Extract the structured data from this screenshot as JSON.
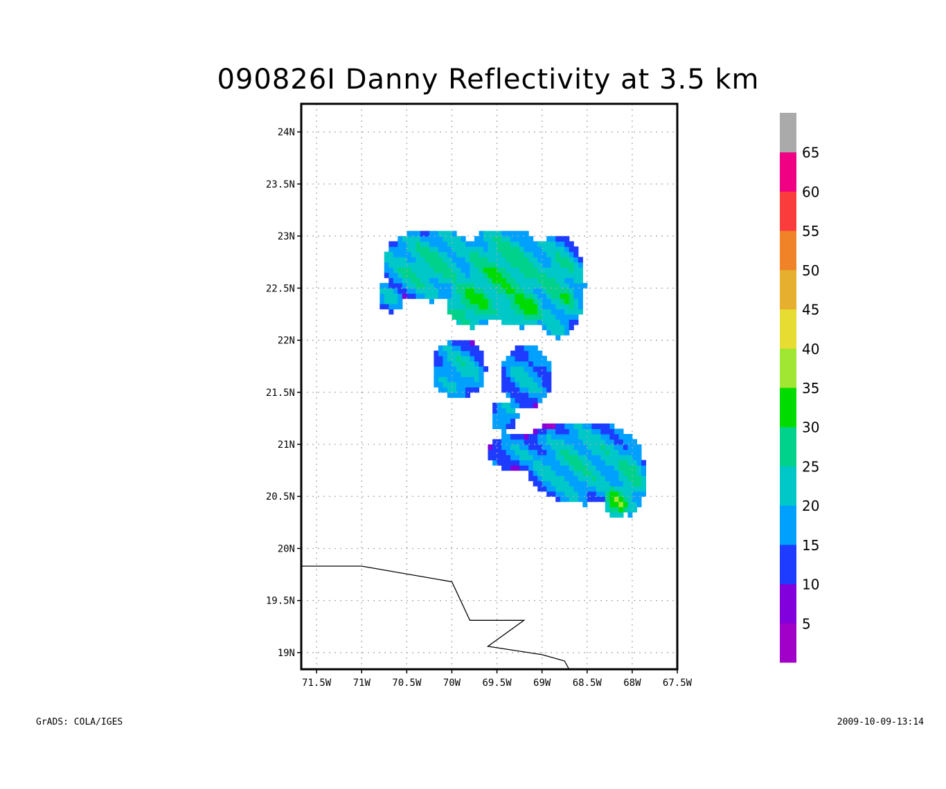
{
  "chart_data": {
    "type": "heatmap",
    "title": "090826I Danny Reflectivity at 3.5 km",
    "x_ticks": [
      "71.5W",
      "71W",
      "70.5W",
      "70W",
      "69.5W",
      "69W",
      "68.5W",
      "68W",
      "67.5W"
    ],
    "y_ticks": [
      "24N",
      "23.5N",
      "23N",
      "22.5N",
      "22N",
      "21.5N",
      "21N",
      "20.5N",
      "20N",
      "19.5N",
      "19N"
    ],
    "x_values_lon": [
      -71.5,
      -71.0,
      -70.5,
      -70.0,
      -69.5,
      -69.0,
      -68.5,
      -68.0,
      -67.5
    ],
    "y_values_lat": [
      24.0,
      23.5,
      23.0,
      22.5,
      22.0,
      21.5,
      21.0,
      20.5,
      20.0,
      19.5,
      19.0
    ],
    "xlim": [
      -71.67,
      -67.5
    ],
    "ylim": [
      18.84,
      24.27
    ],
    "grid": true,
    "colorbar": {
      "labels": [
        "5",
        "10",
        "15",
        "20",
        "25",
        "30",
        "35",
        "40",
        "45",
        "50",
        "55",
        "60",
        "65"
      ],
      "colors": [
        "#a000c8",
        "#8200dc",
        "#1e3cff",
        "#00a0ff",
        "#00c8c8",
        "#00d28c",
        "#00dc00",
        "#a0e632",
        "#e6dc32",
        "#e6af2d",
        "#f08228",
        "#fa3c3c",
        "#f00082",
        "#aaaaaa"
      ]
    },
    "coastline_lonlat": [
      [
        -71.67,
        19.83
      ],
      [
        -71.0,
        19.83
      ],
      [
        -70.0,
        19.68
      ],
      [
        -69.8,
        19.31
      ],
      [
        -69.2,
        19.31
      ],
      [
        -69.6,
        19.06
      ],
      [
        -69.0,
        18.98
      ],
      [
        -68.75,
        18.92
      ],
      [
        -68.7,
        18.84
      ]
    ]
  },
  "footer": {
    "left": "GrADS: COLA/IGES",
    "right": "2009-10-09-13:14"
  }
}
